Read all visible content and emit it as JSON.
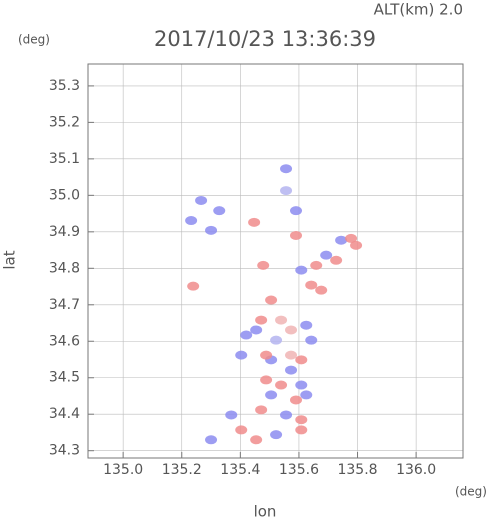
{
  "chart_data": {
    "type": "scatter",
    "title": "2017/10/23 13:36:39",
    "subtitle": "ALT(km)  2.0",
    "y_unit": "(deg)",
    "x_unit": "(deg)",
    "x_label": "lon",
    "y_label": "lat",
    "xlim": [
      134.88,
      136.16
    ],
    "ylim": [
      34.28,
      35.36
    ],
    "xticks": [
      {
        "value": 135,
        "label": "135.0"
      },
      135.2,
      135.4,
      135.6,
      135.8,
      {
        "value": 136,
        "label": "136.0"
      }
    ],
    "yticks": [
      34.3,
      34.4,
      34.5,
      34.6,
      34.7,
      34.8,
      34.9,
      {
        "value": 35,
        "label": "35.0"
      },
      35.1,
      35.2,
      35.3
    ],
    "grid": true,
    "x": [
      135.266,
      135.232,
      135.3,
      135.328,
      135.447,
      135.556,
      135.556,
      135.59,
      135.59,
      135.239,
      135.478,
      135.744,
      135.778,
      135.795,
      135.727,
      135.693,
      135.659,
      135.608,
      135.642,
      135.676,
      135.505,
      135.471,
      135.454,
      135.42,
      135.522,
      135.573,
      135.625,
      135.573,
      135.505,
      135.573,
      135.608,
      135.488,
      135.403,
      135.539,
      135.608,
      135.505,
      135.59,
      135.625,
      135.471,
      135.556,
      135.608,
      135.403,
      135.3,
      135.454,
      135.522,
      135.608,
      135.369,
      135.642,
      135.539,
      135.488
    ],
    "y": [
      34.986,
      34.931,
      34.904,
      34.958,
      34.926,
      35.013,
      35.073,
      34.958,
      34.89,
      34.751,
      34.808,
      34.877,
      34.882,
      34.863,
      34.822,
      34.836,
      34.808,
      34.795,
      34.754,
      34.74,
      34.713,
      34.658,
      34.631,
      34.617,
      34.603,
      34.631,
      34.644,
      34.562,
      34.549,
      34.521,
      34.549,
      34.494,
      34.562,
      34.48,
      34.48,
      34.453,
      34.439,
      34.453,
      34.412,
      34.398,
      34.385,
      34.357,
      34.33,
      34.33,
      34.344,
      34.357,
      34.398,
      34.603,
      34.658,
      34.562
    ],
    "colors": [
      "#8c8cf0",
      "#8c8cf0",
      "#8c8cf0",
      "#8c8cf0",
      "#f08c8c",
      "#b4b4f0",
      "#8c8cf0",
      "#8c8cf0",
      "#f08c8c",
      "#f08c8c",
      "#f08c8c",
      "#8c8cf0",
      "#f08c8c",
      "#f08c8c",
      "#f08c8c",
      "#8c8cf0",
      "#f08c8c",
      "#8c8cf0",
      "#f08c8c",
      "#f08c8c",
      "#f08c8c",
      "#f08c8c",
      "#8c8cf0",
      "#8c8cf0",
      "#b4b4f0",
      "#f0b4b4",
      "#8c8cf0",
      "#f0b4b4",
      "#8c8cf0",
      "#8c8cf0",
      "#f08c8c",
      "#f08c8c",
      "#8c8cf0",
      "#f08c8c",
      "#8c8cf0",
      "#8c8cf0",
      "#f08c8c",
      "#8c8cf0",
      "#f08c8c",
      "#8c8cf0",
      "#f08c8c",
      "#f08c8c",
      "#8c8cf0",
      "#f08c8c",
      "#8c8cf0",
      "#f08c8c",
      "#8c8cf0",
      "#8c8cf0",
      "#f0b4b4",
      "#f08c8c"
    ]
  }
}
